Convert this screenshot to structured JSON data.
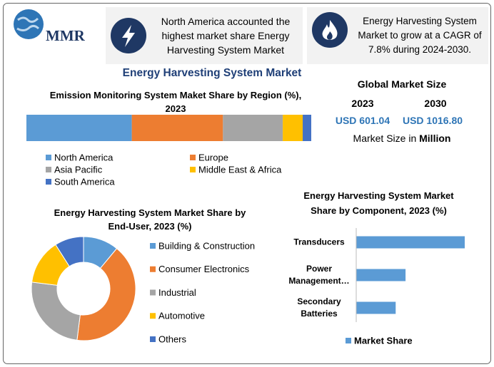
{
  "logo": {
    "text": "MMR"
  },
  "callouts": [
    {
      "text": "North America accounted the highest market share Energy Harvesting System Market"
    },
    {
      "text": "Energy Harvesting System Market to grow at a CAGR of 7.8% during 2024-2030."
    }
  ],
  "main_title": "Energy Harvesting System Market",
  "market_size": {
    "title": "Global Market Size",
    "years": [
      "2023",
      "2030"
    ],
    "values": [
      "USD 601.04",
      "USD 1016.80"
    ],
    "unit_prefix": "Market Size in",
    "unit": "Million"
  },
  "chart_data": [
    {
      "type": "stacked-bar",
      "title": "Emission Monitoring System Maket Share by Region (%), 2023",
      "series": [
        {
          "name": "North America",
          "color": "#5b9bd5",
          "values": [
            37
          ]
        },
        {
          "name": "Europe",
          "color": "#ed7d31",
          "values": [
            32
          ]
        },
        {
          "name": "Asia Pacific",
          "color": "#a5a5a5",
          "values": [
            21
          ]
        },
        {
          "name": "Middle East & Africa",
          "color": "#ffc000",
          "values": [
            7
          ]
        },
        {
          "name": "South America",
          "color": "#4472c4",
          "values": [
            3
          ]
        }
      ]
    },
    {
      "type": "donut",
      "title": "Energy Harvesting System Market Share by End-User, 2023 (%)",
      "categories": [
        "Building & Construction",
        "Consumer Electronics",
        "Industrial",
        "Automotive",
        "Others"
      ],
      "values": [
        11,
        41,
        25,
        14,
        9
      ],
      "colors": [
        "#5b9bd5",
        "#ed7d31",
        "#a5a5a5",
        "#ffc000",
        "#4472c4"
      ]
    },
    {
      "type": "hbar",
      "title": "Energy Harvesting System Market Share by Component, 2023 (%)",
      "categories": [
        "Transducers",
        "Power Management…",
        "Secondary Batteries"
      ],
      "series": [
        {
          "name": "Market Share",
          "color": "#5b9bd5",
          "values": [
            55,
            25,
            20
          ]
        }
      ]
    }
  ]
}
